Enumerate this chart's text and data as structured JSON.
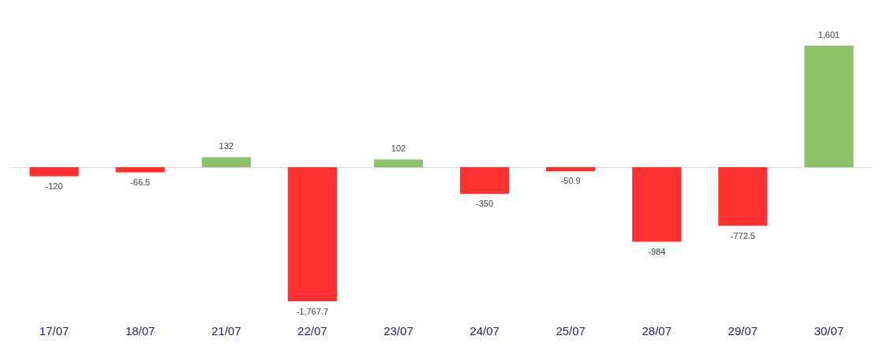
{
  "chart_data": {
    "type": "bar",
    "categories": [
      "17/07",
      "18/07",
      "21/07",
      "22/07",
      "23/07",
      "24/07",
      "25/07",
      "28/07",
      "29/07",
      "30/07"
    ],
    "values": [
      -120,
      -66.5,
      132,
      -1767.7,
      102,
      -350,
      -50.9,
      -984,
      -772.5,
      1601
    ],
    "colors": [
      "#ff3030",
      "#ff3030",
      "#8dc26b",
      "#ff3030",
      "#8dc26b",
      "#ff3030",
      "#ff3030",
      "#ff3030",
      "#ff3030",
      "#8dc26b"
    ],
    "value_labels": [
      "-120",
      "-66.5",
      "132",
      "-1,767.7",
      "102",
      "-350",
      "-50.9",
      "-984",
      "-772.5",
      "1,601"
    ]
  }
}
